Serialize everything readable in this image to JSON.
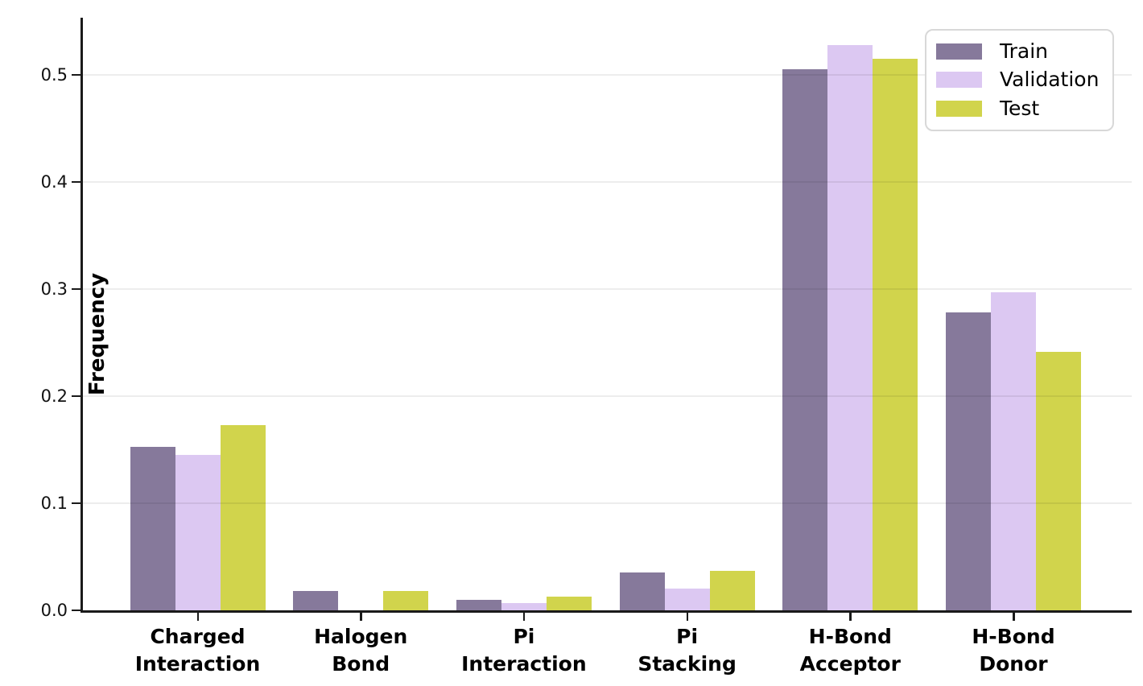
{
  "chart_data": {
    "type": "bar",
    "categories": [
      [
        "Charged",
        "Interaction"
      ],
      [
        "Halogen",
        "Bond"
      ],
      [
        "Pi",
        "Interaction"
      ],
      [
        "Pi",
        "Stacking"
      ],
      [
        "H-Bond",
        "Acceptor"
      ],
      [
        "H-Bond",
        "Donor"
      ]
    ],
    "series": [
      {
        "name": "Train",
        "color": "#86799b",
        "values": [
          0.153,
          0.018,
          0.01,
          0.035,
          0.505,
          0.278
        ]
      },
      {
        "name": "Validation",
        "color": "#dcc8f2",
        "values": [
          0.145,
          0.0,
          0.007,
          0.02,
          0.528,
          0.297
        ]
      },
      {
        "name": "Test",
        "color": "#d1d44c",
        "values": [
          0.173,
          0.018,
          0.013,
          0.037,
          0.515,
          0.241
        ]
      }
    ],
    "title": "",
    "xlabel": "",
    "ylabel": "Frequency",
    "yticks": [
      0.0,
      0.1,
      0.2,
      0.3,
      0.4,
      0.5
    ],
    "ytick_labels": [
      "0.0",
      "0.1",
      "0.2",
      "0.3",
      "0.4",
      "0.5"
    ],
    "ylim": [
      0,
      0.5534
    ],
    "grid": "horizontal",
    "legend_position": "upper right",
    "legend_entries": [
      "Train",
      "Validation",
      "Test"
    ]
  }
}
